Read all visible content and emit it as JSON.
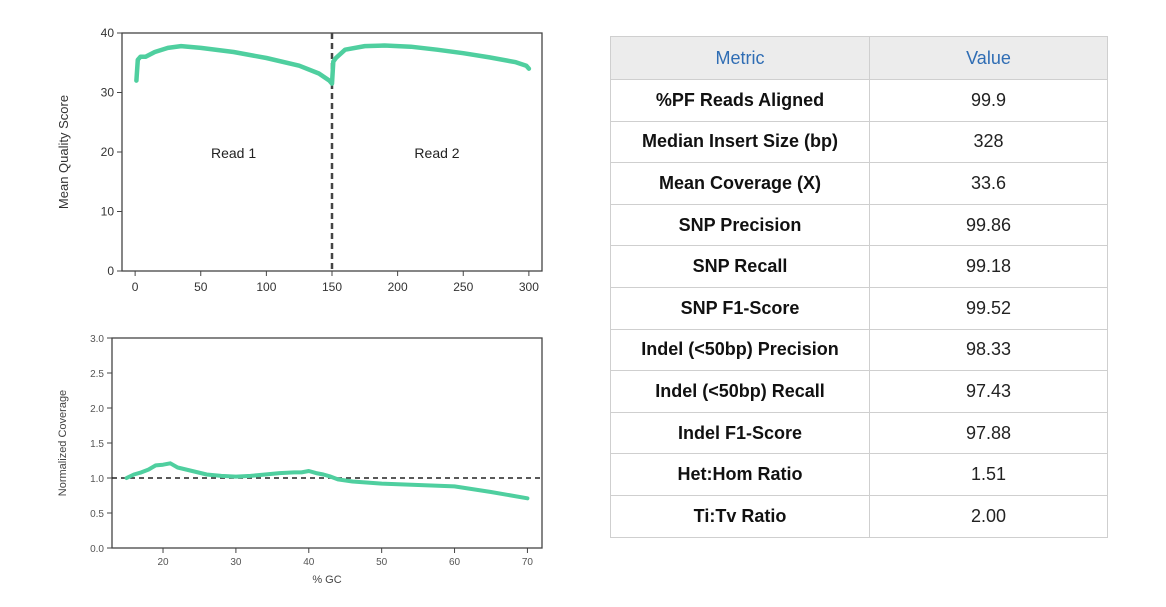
{
  "chart_data": [
    {
      "type": "line",
      "ylabel": "Mean Quality Score",
      "xlim": [
        -10,
        310
      ],
      "ylim": [
        0,
        40
      ],
      "x_ticks": [
        0,
        50,
        100,
        150,
        200,
        250,
        300
      ],
      "y_ticks": [
        0,
        10,
        20,
        30,
        40
      ],
      "color": "#4fcf9f",
      "divider_x": 150,
      "annotations": [
        {
          "text": "Read 1",
          "x": 75,
          "y": 19
        },
        {
          "text": "Read 2",
          "x": 230,
          "y": 19
        }
      ],
      "series": [
        {
          "x": [
            1,
            2,
            4,
            8,
            15,
            25,
            35,
            50,
            75,
            100,
            125,
            140,
            148,
            150,
            151,
            153,
            160,
            175,
            190,
            210,
            230,
            250,
            270,
            290,
            298,
            300
          ],
          "y": [
            32,
            35.5,
            36,
            36,
            36.8,
            37.5,
            37.8,
            37.5,
            36.8,
            35.8,
            34.5,
            33.2,
            32,
            31.5,
            35.2,
            35.8,
            37.2,
            37.8,
            37.9,
            37.7,
            37.2,
            36.6,
            35.9,
            35.1,
            34.5,
            34
          ]
        }
      ]
    },
    {
      "type": "line",
      "xlabel": "% GC",
      "ylabel": "Normalized Coverage",
      "xlim": [
        13,
        72
      ],
      "ylim": [
        0,
        3
      ],
      "x_ticks": [
        20,
        30,
        40,
        50,
        60,
        70
      ],
      "y_ticks": [
        "0.0",
        "0.5",
        "1.0",
        "1.5",
        "2.0",
        "2.5",
        "3.0"
      ],
      "color": "#4fcf9f",
      "reference_y": 1.0,
      "series": [
        {
          "x": [
            15,
            16,
            17,
            18,
            19,
            20,
            21,
            22,
            24,
            26,
            28,
            30,
            32,
            34,
            36,
            38,
            39,
            40,
            41,
            42,
            43,
            44,
            46,
            50,
            55,
            60,
            65,
            70
          ],
          "y": [
            1.0,
            1.05,
            1.08,
            1.12,
            1.18,
            1.19,
            1.21,
            1.15,
            1.1,
            1.05,
            1.03,
            1.02,
            1.03,
            1.05,
            1.07,
            1.08,
            1.08,
            1.1,
            1.07,
            1.05,
            1.02,
            0.98,
            0.95,
            0.92,
            0.9,
            0.88,
            0.8,
            0.71
          ]
        }
      ]
    }
  ],
  "table": {
    "headers": [
      "Metric",
      "Value"
    ],
    "rows": [
      [
        "%PF Reads Aligned",
        "99.9"
      ],
      [
        "Median Insert Size (bp)",
        "328"
      ],
      [
        "Mean Coverage (X)",
        "33.6"
      ],
      [
        "SNP Precision",
        "99.86"
      ],
      [
        "SNP Recall",
        "99.18"
      ],
      [
        "SNP F1-Score",
        "99.52"
      ],
      [
        "Indel (<50bp) Precision",
        "98.33"
      ],
      [
        "Indel (<50bp) Recall",
        "97.43"
      ],
      [
        "Indel F1-Score",
        "97.88"
      ],
      [
        "Het:Hom Ratio",
        "1.51"
      ],
      [
        "Ti:Tv Ratio",
        "2.00"
      ]
    ]
  }
}
